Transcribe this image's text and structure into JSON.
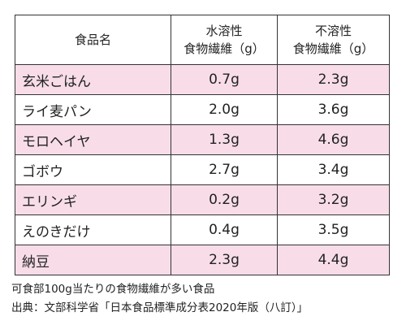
{
  "table": {
    "header": [
      [
        "食品名"
      ],
      [
        "水溶性",
        "食物繊維（g）"
      ],
      [
        "不溶性",
        "食物繊維（g）"
      ]
    ],
    "rows": [
      [
        "玄米ごはん",
        "0.7g",
        "2.3g"
      ],
      [
        "ライ麦パン",
        "2.0g",
        "3.6g"
      ],
      [
        "モロヘイヤ",
        "1.3g",
        "4.6g"
      ],
      [
        "ゴボウ",
        "2.7g",
        "3.4g"
      ],
      [
        "エリンギ",
        "0.2g",
        "3.2g"
      ],
      [
        "えのきだけ",
        "0.4g",
        "3.5g"
      ],
      [
        "納豆",
        "2.3g",
        "4.4g"
      ]
    ]
  },
  "notes": [
    "可食部100g当たりの食物繊維が多い食品",
    "出典：文部科学省「日本食品標準成分表2020年版（八訂）」"
  ]
}
